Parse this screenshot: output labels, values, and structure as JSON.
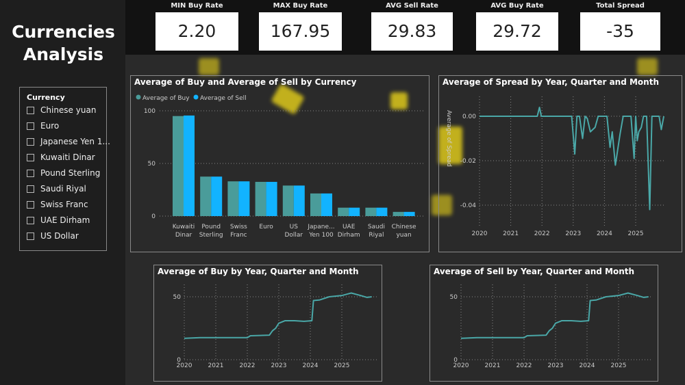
{
  "title": "Currencies Analysis",
  "kpis": [
    {
      "label": "MIN Buy Rate",
      "value": "2.20"
    },
    {
      "label": "MAX Buy Rate",
      "value": "167.95"
    },
    {
      "label": "AVG Sell Rate",
      "value": "29.83"
    },
    {
      "label": "AVG Buy Rate",
      "value": "29.72"
    },
    {
      "label": "Total Spread",
      "value": "-35"
    }
  ],
  "slicer": {
    "header": "Currency",
    "items": [
      "Chinese yuan",
      "Euro",
      "Japanese Yen 1...",
      "Kuwaiti Dinar",
      "Pound Sterling",
      "Saudi Riyal",
      "Swiss Franc",
      "UAE Dirham",
      "US Dollar"
    ]
  },
  "colors": {
    "buy": "#4a9c9a",
    "sell": "#12b3ff",
    "line": "#4aa8a8",
    "background": "#2a2a2a"
  },
  "chart_data": [
    {
      "type": "bar",
      "title": "Average of Buy and Average of Sell by Currency",
      "legend_position": "top-left",
      "categories": [
        "Kuwaiti Dinar",
        "Pound Sterling",
        "Swiss Franc",
        "Euro",
        "US Dollar",
        "Japanese Yen 100",
        "UAE Dirham",
        "Saudi Riyal",
        "Chinese yuan"
      ],
      "category_labels": [
        [
          "Kuwaiti",
          "Dinar"
        ],
        [
          "Pound",
          "Sterling"
        ],
        [
          "Swiss",
          "Franc"
        ],
        [
          "Euro",
          ""
        ],
        [
          "US",
          "Dollar"
        ],
        [
          "Japane...",
          "Yen 100"
        ],
        [
          "UAE",
          "Dirham"
        ],
        [
          "Saudi",
          "Riyal"
        ],
        [
          "Chinese",
          "yuan"
        ]
      ],
      "series": [
        {
          "name": "Average of Buy",
          "values": [
            95,
            37.5,
            33,
            32.5,
            29,
            21.5,
            8,
            8,
            4
          ]
        },
        {
          "name": "Average of Sell",
          "values": [
            95.5,
            37.5,
            33,
            32.5,
            29,
            21.5,
            8,
            8,
            4
          ]
        }
      ],
      "yticks": [
        "0",
        "50",
        "100"
      ],
      "ylim": [
        0,
        100
      ],
      "grid": true
    },
    {
      "type": "line",
      "title": "Average of Spread by Year, Quarter and Month",
      "ylabel": "Average of Spread",
      "xticks": [
        "2020",
        "2021",
        "2022",
        "2023",
        "2024",
        "2025"
      ],
      "yticks": [
        "0.00",
        "-0.02",
        "-0.04"
      ],
      "ylim": [
        -0.045,
        0.005
      ],
      "grid": true,
      "points": [
        [
          2020,
          0
        ],
        [
          2021.85,
          0
        ],
        [
          2021.92,
          0.004
        ],
        [
          2021.98,
          0
        ],
        [
          2022.95,
          0
        ],
        [
          2023.05,
          -0.017
        ],
        [
          2023.12,
          0
        ],
        [
          2023.2,
          0
        ],
        [
          2023.3,
          -0.01
        ],
        [
          2023.38,
          0
        ],
        [
          2023.45,
          -0.001
        ],
        [
          2023.55,
          -0.007
        ],
        [
          2023.7,
          -0.005
        ],
        [
          2023.8,
          0
        ],
        [
          2024.08,
          0
        ],
        [
          2024.18,
          -0.014
        ],
        [
          2024.25,
          -0.007
        ],
        [
          2024.35,
          -0.022
        ],
        [
          2024.5,
          -0.008
        ],
        [
          2024.6,
          0
        ],
        [
          2024.85,
          0
        ],
        [
          2024.95,
          -0.019
        ],
        [
          2025.0,
          0
        ],
        [
          2025.05,
          -0.011
        ],
        [
          2025.1,
          -0.007
        ],
        [
          2025.18,
          -0.005
        ],
        [
          2025.25,
          0
        ],
        [
          2025.35,
          0
        ],
        [
          2025.45,
          -0.042
        ],
        [
          2025.52,
          0
        ],
        [
          2025.75,
          0
        ],
        [
          2025.82,
          -0.006
        ],
        [
          2025.9,
          0
        ]
      ]
    },
    {
      "type": "line",
      "title": "Average of Buy by Year, Quarter and Month",
      "xticks": [
        "2020",
        "2021",
        "2022",
        "2023",
        "2024",
        "2025"
      ],
      "yticks": [
        "0",
        "50"
      ],
      "ylim": [
        0,
        55
      ],
      "grid": true,
      "points": [
        [
          2020,
          17
        ],
        [
          2020.5,
          17.5
        ],
        [
          2022.0,
          17.5
        ],
        [
          2022.1,
          19
        ],
        [
          2022.7,
          19.5
        ],
        [
          2022.8,
          23
        ],
        [
          2022.9,
          25
        ],
        [
          2023.0,
          29
        ],
        [
          2023.2,
          31
        ],
        [
          2023.5,
          31
        ],
        [
          2023.8,
          30.5
        ],
        [
          2024.05,
          31
        ],
        [
          2024.1,
          47
        ],
        [
          2024.3,
          47.5
        ],
        [
          2024.6,
          50
        ],
        [
          2025.0,
          51
        ],
        [
          2025.3,
          53
        ],
        [
          2025.6,
          51
        ],
        [
          2025.8,
          49.5
        ],
        [
          2025.95,
          50
        ]
      ]
    },
    {
      "type": "line",
      "title": "Average of Sell by Year, Quarter and Month",
      "xticks": [
        "2020",
        "2021",
        "2022",
        "2023",
        "2024",
        "2025"
      ],
      "yticks": [
        "0",
        "50"
      ],
      "ylim": [
        0,
        55
      ],
      "grid": true,
      "points": [
        [
          2020,
          17
        ],
        [
          2020.5,
          17.5
        ],
        [
          2022.0,
          17.5
        ],
        [
          2022.1,
          19
        ],
        [
          2022.7,
          19.5
        ],
        [
          2022.8,
          23
        ],
        [
          2022.9,
          25
        ],
        [
          2023.0,
          29
        ],
        [
          2023.2,
          31
        ],
        [
          2023.5,
          31
        ],
        [
          2023.8,
          30.5
        ],
        [
          2024.05,
          31
        ],
        [
          2024.1,
          47
        ],
        [
          2024.3,
          47.5
        ],
        [
          2024.6,
          50
        ],
        [
          2025.0,
          51
        ],
        [
          2025.3,
          53
        ],
        [
          2025.6,
          51
        ],
        [
          2025.8,
          49.5
        ],
        [
          2025.95,
          50
        ]
      ]
    }
  ]
}
